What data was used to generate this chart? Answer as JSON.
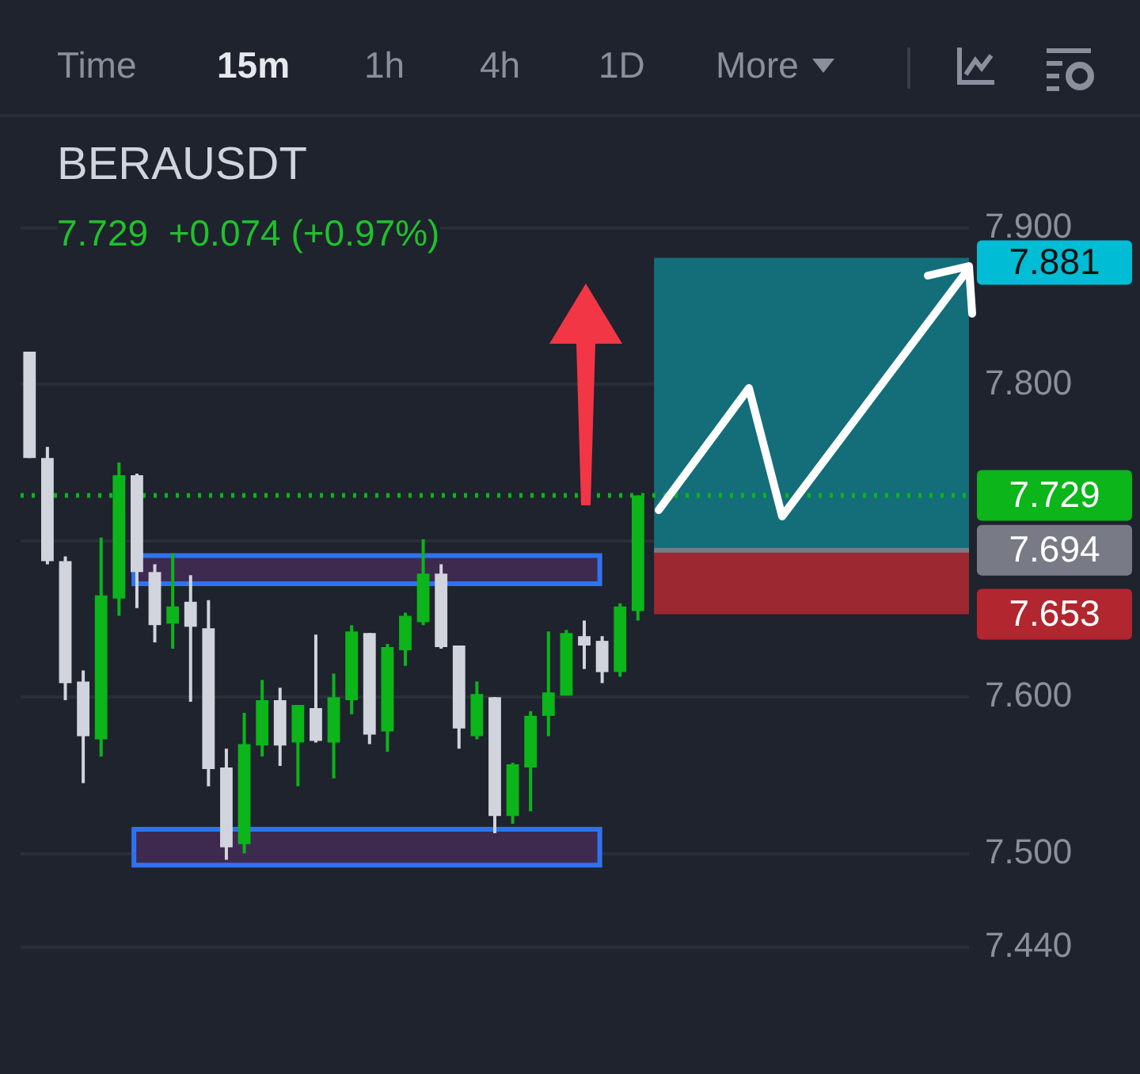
{
  "chart_data": {
    "type": "candlestick",
    "title": "BERAUSDT",
    "subtitle": "7.729  +0.074 (+0.97%)",
    "annotations": [
      "Time",
      "15m",
      "1h",
      "4h",
      "1D",
      "More"
    ],
    "categories": [
      null,
      null,
      null,
      null,
      null,
      null,
      null,
      null,
      null,
      null,
      null,
      null,
      null,
      null,
      null,
      null,
      null,
      null,
      null,
      null,
      null,
      null,
      null,
      null,
      null,
      null,
      null,
      null,
      null,
      null,
      null,
      null,
      null,
      null,
      null,
      null,
      null,
      null,
      null,
      null,
      null,
      null,
      null,
      null,
      null,
      null,
      null,
      null,
      null,
      null,
      null,
      null,
      null
    ],
    "ohlc": [
      [
        7.821,
        7.821,
        7.753,
        7.753
      ],
      [
        7.753,
        7.76,
        7.685,
        7.687
      ],
      [
        7.687,
        7.69,
        7.598,
        7.609
      ],
      [
        7.61,
        7.617,
        7.545,
        7.575
      ],
      [
        7.573,
        7.702,
        7.562,
        7.665
      ],
      [
        7.663,
        7.75,
        7.652,
        7.742
      ],
      [
        7.742,
        7.743,
        7.657,
        7.68
      ],
      [
        7.68,
        7.685,
        7.635,
        7.646
      ],
      [
        7.647,
        7.692,
        7.631,
        7.658
      ],
      [
        7.661,
        7.678,
        7.597,
        7.645
      ],
      [
        7.644,
        7.662,
        7.543,
        7.554
      ],
      [
        7.555,
        7.567,
        7.496,
        7.504
      ],
      [
        7.506,
        7.59,
        7.5,
        7.57
      ],
      [
        7.569,
        7.611,
        7.562,
        7.598
      ],
      [
        7.598,
        7.606,
        7.556,
        7.569
      ],
      [
        7.571,
        7.595,
        7.543,
        7.595
      ],
      [
        7.593,
        7.64,
        7.571,
        7.572
      ],
      [
        7.571,
        7.615,
        7.548,
        7.6
      ],
      [
        7.598,
        7.646,
        7.589,
        7.642
      ],
      [
        7.641,
        7.641,
        7.57,
        7.576
      ],
      [
        7.578,
        7.634,
        7.565,
        7.632
      ],
      [
        7.63,
        7.654,
        7.62,
        7.652
      ],
      [
        7.648,
        7.701,
        7.646,
        7.679
      ],
      [
        7.679,
        7.685,
        7.631,
        7.632
      ],
      [
        7.633,
        7.633,
        7.567,
        7.58
      ],
      [
        7.575,
        7.61,
        7.573,
        7.602
      ],
      [
        7.6,
        7.6,
        7.513,
        7.524
      ],
      [
        7.524,
        7.558,
        7.519,
        7.557
      ],
      [
        7.555,
        7.591,
        7.527,
        7.588
      ],
      [
        7.588,
        7.642,
        7.575,
        7.603
      ],
      [
        7.601,
        7.643,
        7.601,
        7.641
      ],
      [
        7.639,
        7.649,
        7.618,
        7.633
      ],
      [
        7.636,
        7.639,
        7.609,
        7.616
      ],
      [
        7.616,
        7.66,
        7.613,
        7.658
      ],
      [
        7.655,
        7.729,
        7.649,
        7.729
      ],
      null,
      null,
      null,
      null,
      null,
      null,
      null,
      null,
      null,
      null,
      null,
      null,
      null,
      null,
      null,
      null,
      null,
      null
    ],
    "colors": [
      "#d1d4dc",
      "#d1d4dc",
      "#d1d4dc",
      "#d1d4dc",
      "#0bb51a",
      "#0bb51a",
      "#d1d4dc",
      "#d1d4dc",
      "#0bb51a",
      "#d1d4dc",
      "#d1d4dc",
      "#d1d4dc",
      "#0bb51a",
      "#0bb51a",
      "#d1d4dc",
      "#0bb51a",
      "#d1d4dc",
      "#0bb51a",
      "#0bb51a",
      "#d1d4dc",
      "#0bb51a",
      "#0bb51a",
      "#0bb51a",
      "#d1d4dc",
      "#d1d4dc",
      "#0bb51a",
      "#d1d4dc",
      "#0bb51a",
      "#0bb51a",
      "#0bb51a",
      "#0bb51a",
      "#d1d4dc",
      "#d1d4dc",
      "#0bb51a",
      "#0bb51a",
      null,
      null,
      null,
      null,
      null,
      null,
      null,
      null,
      null,
      null,
      null,
      null,
      null,
      null,
      null,
      null,
      null,
      null
    ],
    "ylim": [
      7.44,
      7.9
    ],
    "yticks": [
      {
        "value": 7.44,
        "label": "7.440"
      },
      {
        "value": 7.5,
        "label": "7.500"
      },
      {
        "value": 7.6,
        "label": "7.600"
      },
      {
        "value": 7.7,
        "label": null
      },
      {
        "value": 7.8,
        "label": "7.800"
      },
      {
        "value": 7.9,
        "label": "7.900"
      }
    ],
    "tick_labels": "y",
    "grid": "y",
    "bands": [
      {
        "axis": "y",
        "from": 7.694,
        "to": 7.881,
        "label": "7.881",
        "color": "#136e7a"
      },
      {
        "axis": "y",
        "from": 7.653,
        "to": 7.694,
        "label": "7.653",
        "color": "#9c2832"
      },
      {
        "axis": "y",
        "from": 7.671,
        "to": 7.692,
        "label": null,
        "color": "#3f2a4f"
      },
      {
        "axis": "y",
        "from": 7.491,
        "to": 7.517,
        "label": null,
        "color": "#3f2a4f"
      }
    ],
    "ref_lines": [
      {
        "axis": "y",
        "value": 7.729,
        "label": "7.729",
        "color": "#0bb51a",
        "line_style": "dotted"
      },
      {
        "axis": "y",
        "value": 7.694,
        "label": "7.694",
        "color": "#787b86",
        "line_style": "solid"
      }
    ],
    "legend": false
  }
}
